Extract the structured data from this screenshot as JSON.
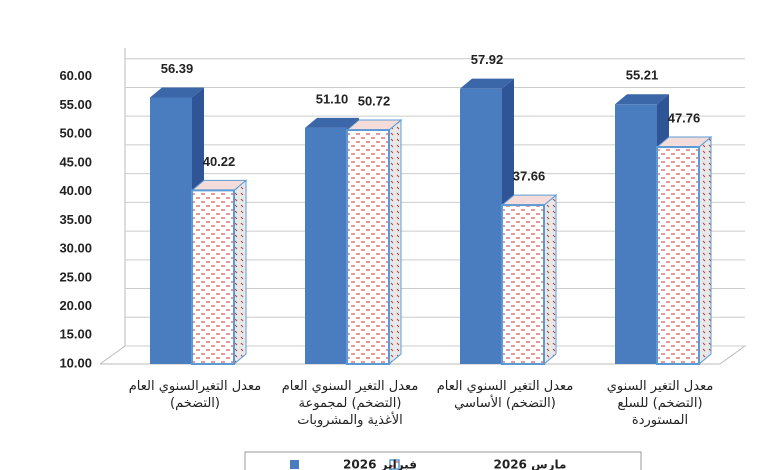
{
  "chart_data": {
    "type": "bar3d",
    "categories": [
      "معدل التغيرالسنوي العام\n(التضخم)",
      "معدل التغير السنوي العام\n(التضخم) لمجموعة\nالأغذية والمشروبات",
      "معدل التغير السنوي العام\n(التضخم) الأساسي",
      "معدل التغير السنوي\n(التضخم) للسلع\nالمستوردة"
    ],
    "series": [
      {
        "name": "فبراير 2026",
        "color": "#4a7cc0",
        "values": [
          56.39,
          51.1,
          57.92,
          55.21
        ],
        "value_labels": [
          "56.39",
          "51.10",
          "57.92",
          "55.21"
        ]
      },
      {
        "name": "مارس 2026",
        "color": "#d9534f",
        "values": [
          40.22,
          50.72,
          37.66,
          47.76
        ],
        "value_labels": [
          "40.22",
          "50.72",
          "37.66",
          "47.76"
        ]
      }
    ],
    "ylim": [
      10,
      65
    ],
    "yticks": [
      {
        "value": 10,
        "label": "10.00"
      },
      {
        "value": 15,
        "label": "15.00"
      },
      {
        "value": 20,
        "label": "20.00"
      },
      {
        "value": 25,
        "label": "25.00"
      },
      {
        "value": 30,
        "label": "30.00"
      },
      {
        "value": 35,
        "label": "35.00"
      },
      {
        "value": 40,
        "label": "40.00"
      },
      {
        "value": 45,
        "label": "45.00"
      },
      {
        "value": 50,
        "label": "50.00"
      },
      {
        "value": 55,
        "label": "55.00"
      },
      {
        "value": 60,
        "label": "60.00"
      }
    ],
    "grid": true
  }
}
